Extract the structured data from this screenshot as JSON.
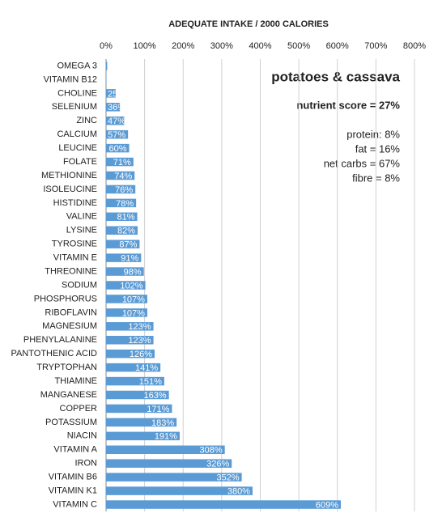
{
  "chart_data": {
    "type": "barh",
    "title": "ADEQUATE INTAKE / 2000 CALORIES",
    "categories": [
      "OMEGA 3",
      "VITAMIN B12",
      "CHOLINE",
      "SELENIUM",
      "ZINC",
      "CALCIUM",
      "LEUCINE",
      "FOLATE",
      "METHIONINE",
      "ISOLEUCINE",
      "HISTIDINE",
      "VALINE",
      "LYSINE",
      "TYROSINE",
      "VITAMIN E",
      "THREONINE",
      "SODIUM",
      "PHOSPHORUS",
      "RIBOFLAVIN",
      "MAGNESIUM",
      "PHENYLALANINE",
      "PANTOTHENIC ACID",
      "TRYPTOPHAN",
      "THIAMINE",
      "MANGANESE",
      "COPPER",
      "POTASSIUM",
      "NIACIN",
      "VITAMIN A",
      "IRON",
      "VITAMIN B6",
      "VITAMIN K1",
      "VITAMIN C"
    ],
    "values": [
      3,
      1,
      25,
      36,
      47,
      57,
      60,
      71,
      74,
      76,
      78,
      81,
      82,
      87,
      91,
      98,
      102,
      107,
      107,
      123,
      123,
      126,
      141,
      151,
      163,
      171,
      183,
      191,
      308,
      326,
      352,
      380,
      609
    ],
    "value_labels": [
      null,
      null,
      "25%",
      "36%",
      "47%",
      "57%",
      "60%",
      "71%",
      "74%",
      "76%",
      "78%",
      "81%",
      "82%",
      "87%",
      "91%",
      "98%",
      "102%",
      "107%",
      "107%",
      "123%",
      "123%",
      "126%",
      "141%",
      "151%",
      "163%",
      "171%",
      "183%",
      "191%",
      "308%",
      "326%",
      "352%",
      "380%",
      "609%"
    ],
    "color": "#5b9bd5",
    "xlim": [
      0,
      800
    ],
    "xticks": [
      {
        "value": 0,
        "label": "0%"
      },
      {
        "value": 100,
        "label": "100%"
      },
      {
        "value": 200,
        "label": "200%"
      },
      {
        "value": 300,
        "label": "300%"
      },
      {
        "value": 400,
        "label": "400%"
      },
      {
        "value": 500,
        "label": "500%"
      },
      {
        "value": 600,
        "label": "600%"
      },
      {
        "value": 700,
        "label": "700%"
      },
      {
        "value": 800,
        "label": "800%"
      }
    ],
    "grid": true,
    "annotations": [
      "potatoes & cassava",
      "nutrient score = 27%",
      "protein: 8%",
      "fat = 16%",
      "net carbs = 67%",
      "fibre = 8%"
    ]
  }
}
